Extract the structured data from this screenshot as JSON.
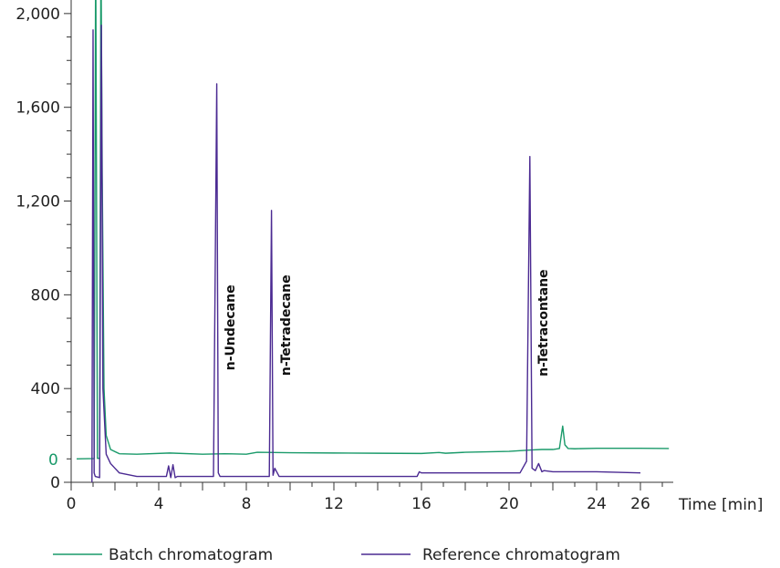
{
  "chart_data": {
    "type": "line",
    "title": "",
    "xlabel": "Time [min]",
    "ylabel": "",
    "xlim": [
      0,
      27.5
    ],
    "ylim": [
      0,
      2050
    ],
    "x_ticks": [
      0,
      4,
      8,
      12,
      16,
      20,
      24,
      26
    ],
    "x_tick_labels": [
      "0",
      "4",
      "8",
      "12",
      "16",
      "20",
      "24",
      "26"
    ],
    "y_ticks": [
      0,
      400,
      800,
      1200,
      1600,
      2000
    ],
    "y_tick_labels": [
      "0",
      "400",
      "800",
      "1,200",
      "1,600",
      "2,000"
    ],
    "batch_zero_label": "0",
    "grid": false,
    "legend_position": "bottom",
    "series": [
      {
        "name": "Batch chromatogram",
        "color": "#1a9a6a",
        "y_offset": 100,
        "x": [
          0.25,
          1.05,
          1.12,
          1.2,
          1.3,
          1.36,
          1.42,
          1.5,
          1.6,
          1.8,
          2.2,
          3,
          4.5,
          6,
          7,
          8,
          8.5,
          10,
          12,
          14,
          16,
          16.8,
          17.1,
          18,
          20,
          21,
          21.5,
          22,
          22.3,
          22.45,
          22.55,
          22.7,
          23,
          24,
          26,
          27.3
        ],
        "y": [
          0,
          1.5,
          2200,
          2,
          3,
          2200,
          1200,
          300,
          100,
          40,
          22,
          20,
          25,
          20,
          22,
          20,
          28,
          26,
          25,
          24,
          23,
          27,
          24,
          28,
          32,
          38,
          40,
          40,
          44,
          140,
          60,
          44,
          43,
          45,
          45,
          44
        ]
      },
      {
        "name": "Reference chromatogram",
        "color": "#4b2a92",
        "y_offset": 0,
        "x": [
          0.95,
          1,
          1.05,
          1.1,
          1.3,
          1.38,
          1.45,
          1.6,
          1.8,
          2.2,
          3,
          4.35,
          4.45,
          4.55,
          4.65,
          4.75,
          4.85,
          6.5,
          6.65,
          6.72,
          6.8,
          6.9,
          9.05,
          9.15,
          9.22,
          9.3,
          9.5,
          10,
          15.8,
          15.9,
          16,
          20.5,
          20.8,
          20.95,
          21.05,
          21.2,
          21.35,
          21.5,
          21.6,
          22,
          24,
          26
        ],
        "y": [
          0,
          1930,
          40,
          25,
          20,
          1950,
          400,
          120,
          80,
          40,
          25,
          25,
          70,
          20,
          75,
          20,
          25,
          25,
          1700,
          40,
          25,
          25,
          25,
          1160,
          30,
          60,
          25,
          25,
          25,
          45,
          40,
          40,
          90,
          1390,
          60,
          50,
          80,
          45,
          50,
          45,
          45,
          40
        ]
      }
    ],
    "annotations": [
      {
        "text": "n-Undecane",
        "x": 6.7,
        "y": 660
      },
      {
        "text": "n-Tetradecane",
        "x": 9.25,
        "y": 670
      },
      {
        "text": "n-Tetracontane",
        "x": 21,
        "y": 680
      }
    ]
  }
}
